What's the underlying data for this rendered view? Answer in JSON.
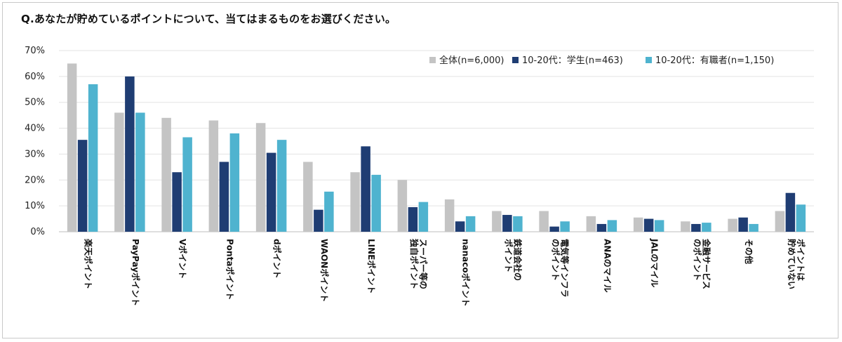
{
  "title": "Q.あなたが貯めているポイントについて、当てはまるものをお選びください。",
  "chart_data": {
    "type": "bar",
    "title": "Q.あなたが貯めているポイントについて、当てはまるものをお選びください。",
    "xlabel": "",
    "ylabel": "",
    "ylim": [
      0,
      70
    ],
    "yticks": [
      "0%",
      "10%",
      "20%",
      "30%",
      "40%",
      "50%",
      "60%",
      "70%"
    ],
    "ytick_values": [
      0,
      10,
      20,
      30,
      40,
      50,
      60,
      70
    ],
    "grid": true,
    "legend_position": "top-right",
    "categories": [
      [
        "楽天ポイント"
      ],
      [
        "PayPayポイント"
      ],
      [
        "Vポイント"
      ],
      [
        "Pontaポイント"
      ],
      [
        "dポイント"
      ],
      [
        "WAONポイント"
      ],
      [
        "LINEポイント"
      ],
      [
        "スーパー等の",
        "独自ポイント"
      ],
      [
        "nanacoポイント"
      ],
      [
        "鉄道会社の",
        "ポイント"
      ],
      [
        "電気等インフラ",
        "のポイント"
      ],
      [
        "ANAのマイル"
      ],
      [
        "JALのマイル"
      ],
      [
        "金融サービス",
        "のポイント"
      ],
      [
        "その他"
      ],
      [
        "ポイントは",
        "貯めていない"
      ]
    ],
    "series": [
      {
        "name": "全体(n=6,000)",
        "color": "#c4c4c4",
        "values": [
          65,
          46,
          44,
          43,
          42,
          27,
          23,
          20,
          12.5,
          8,
          8,
          6,
          5.5,
          4,
          5,
          8
        ]
      },
      {
        "name": "10-20代：学生(n=463)",
        "color": "#1f3d73",
        "values": [
          35.5,
          60,
          23,
          27,
          30.5,
          8.5,
          33,
          9.5,
          4,
          6.5,
          2,
          3,
          5,
          3,
          5.5,
          15
        ]
      },
      {
        "name": "10-20代：有職者(n=1,150)",
        "color": "#4fb3cf",
        "values": [
          57,
          46,
          36.5,
          38,
          35.5,
          15.5,
          22,
          11.5,
          6,
          6,
          4,
          4.5,
          4.5,
          3.5,
          3,
          10.5
        ]
      }
    ]
  }
}
